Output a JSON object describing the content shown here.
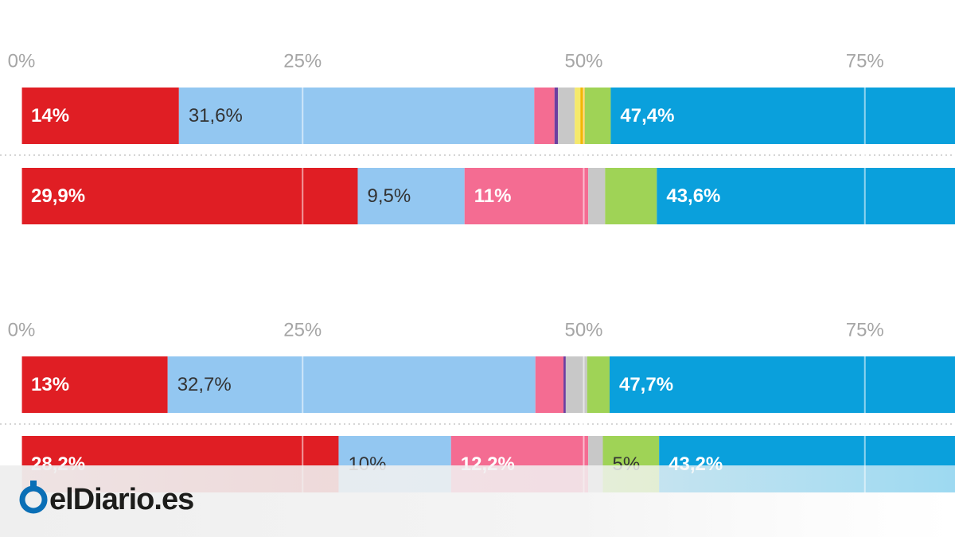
{
  "logo": "elDiario.es",
  "chart_data": [
    {
      "type": "stacked-bar-horizontal",
      "categories": [
        null,
        null
      ],
      "xlim": [
        0,
        100
      ],
      "xticks": [
        {
          "value": 0,
          "label": "0%"
        },
        {
          "value": 25,
          "label": "25%"
        },
        {
          "value": 50,
          "label": "50%"
        },
        {
          "value": 75,
          "label": "75%"
        }
      ],
      "grid": true,
      "series": [
        {
          "color": "#e01e24",
          "label_color": "#ffffff",
          "values": [
            14,
            29.9
          ],
          "value_labels": [
            "14%",
            "29,9%"
          ]
        },
        {
          "color": "#93c7f1",
          "label_color": "#333333",
          "values": [
            31.6,
            9.5
          ],
          "value_labels": [
            "31,6%",
            "9,5%"
          ]
        },
        {
          "color": "#f46c92",
          "label_color": "#ffffff",
          "values": [
            1.8,
            11
          ],
          "value_labels": [
            null,
            "11%"
          ]
        },
        {
          "color": "#6b3fa0",
          "label_color": "#ffffff",
          "values": [
            0.3,
            null
          ],
          "value_labels": [
            null,
            null
          ]
        },
        {
          "color": "#c8c8c8",
          "label_color": "#333333",
          "values": [
            1.5,
            1.5
          ],
          "value_labels": [
            null,
            null
          ]
        },
        {
          "color": "#f5e96b",
          "label_color": "#333333",
          "values": [
            0.5,
            null
          ],
          "value_labels": [
            null,
            null
          ]
        },
        {
          "color": "#f2b705",
          "label_color": "#333333",
          "values": [
            0.4,
            null
          ],
          "value_labels": [
            null,
            null
          ]
        },
        {
          "color": "#9fd356",
          "label_color": "#333333",
          "values": [
            2.3,
            4.6
          ],
          "value_labels": [
            null,
            null
          ]
        },
        {
          "color": "#0aa0dc",
          "label_color": "#ffffff",
          "values": [
            47.4,
            43.6
          ],
          "value_labels": [
            "47,4%",
            "43,6%"
          ]
        }
      ]
    },
    {
      "type": "stacked-bar-horizontal",
      "categories": [
        null,
        null
      ],
      "xlim": [
        0,
        100
      ],
      "xticks": [
        {
          "value": 0,
          "label": "0%"
        },
        {
          "value": 25,
          "label": "25%"
        },
        {
          "value": 50,
          "label": "50%"
        },
        {
          "value": 75,
          "label": "75%"
        }
      ],
      "grid": true,
      "series": [
        {
          "color": "#e01e24",
          "label_color": "#ffffff",
          "values": [
            13,
            28.2
          ],
          "value_labels": [
            "13%",
            "28,2%"
          ]
        },
        {
          "color": "#93c7f1",
          "label_color": "#333333",
          "values": [
            32.7,
            10
          ],
          "value_labels": [
            "32,7%",
            "10%"
          ]
        },
        {
          "color": "#f46c92",
          "label_color": "#ffffff",
          "values": [
            2.5,
            12.2
          ],
          "value_labels": [
            null,
            "12,2%"
          ]
        },
        {
          "color": "#6b3fa0",
          "label_color": "#ffffff",
          "values": [
            0.2,
            null
          ],
          "value_labels": [
            null,
            null
          ]
        },
        {
          "color": "#c8c8c8",
          "label_color": "#333333",
          "values": [
            1.9,
            1.3
          ],
          "value_labels": [
            null,
            null
          ]
        },
        {
          "color": "#9fd356",
          "label_color": "#333333",
          "values": [
            2.0,
            5
          ],
          "value_labels": [
            null,
            "5%"
          ]
        },
        {
          "color": "#0aa0dc",
          "label_color": "#ffffff",
          "values": [
            47.7,
            43.2
          ],
          "value_labels": [
            "47,7%",
            "43,2%"
          ]
        }
      ]
    }
  ]
}
